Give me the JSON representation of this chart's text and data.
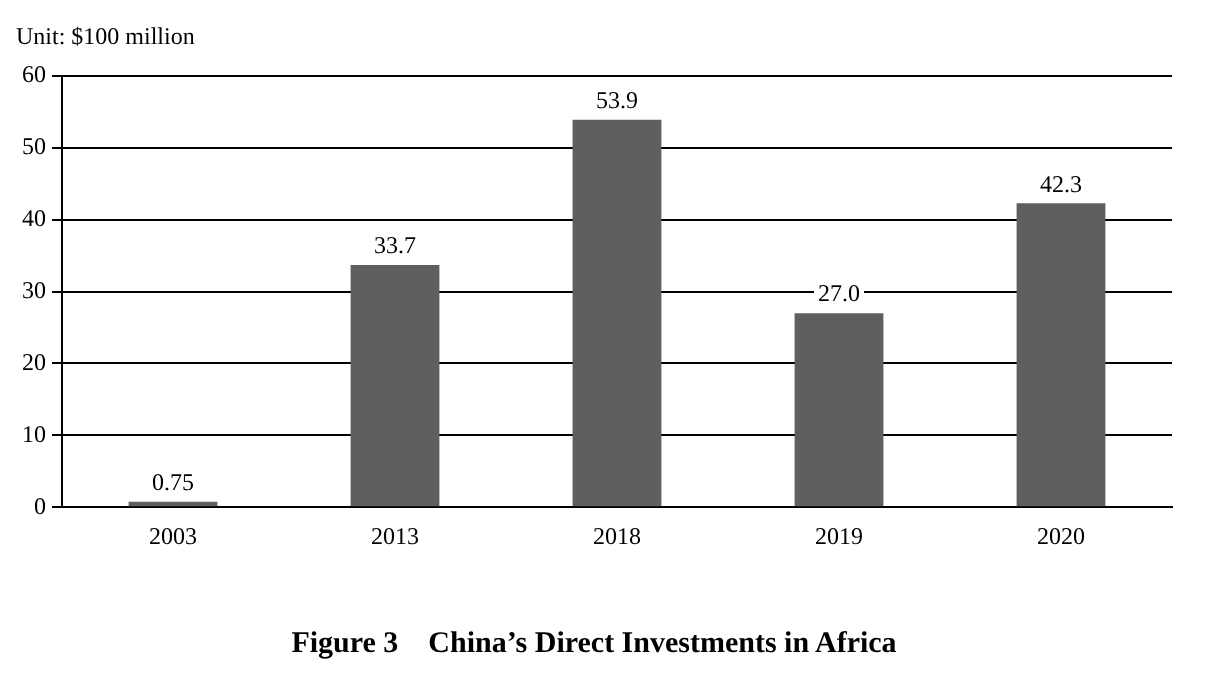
{
  "chart_data": {
    "type": "bar",
    "title": "Figure 3    China’s Direct Investments in Africa",
    "ylabel": "Unit: $100 million",
    "categories": [
      "2003",
      "2013",
      "2018",
      "2019",
      "2020"
    ],
    "values": [
      0.75,
      33.7,
      53.9,
      27.0,
      42.3
    ],
    "value_labels": [
      "0.75",
      "33.7",
      "53.9",
      "27.0",
      "42.3"
    ],
    "color": "#5f5f5f",
    "ylim": [
      0,
      60
    ],
    "yticks": [
      0,
      10,
      20,
      30,
      40,
      50,
      60
    ],
    "grid": "y",
    "legend": false
  }
}
